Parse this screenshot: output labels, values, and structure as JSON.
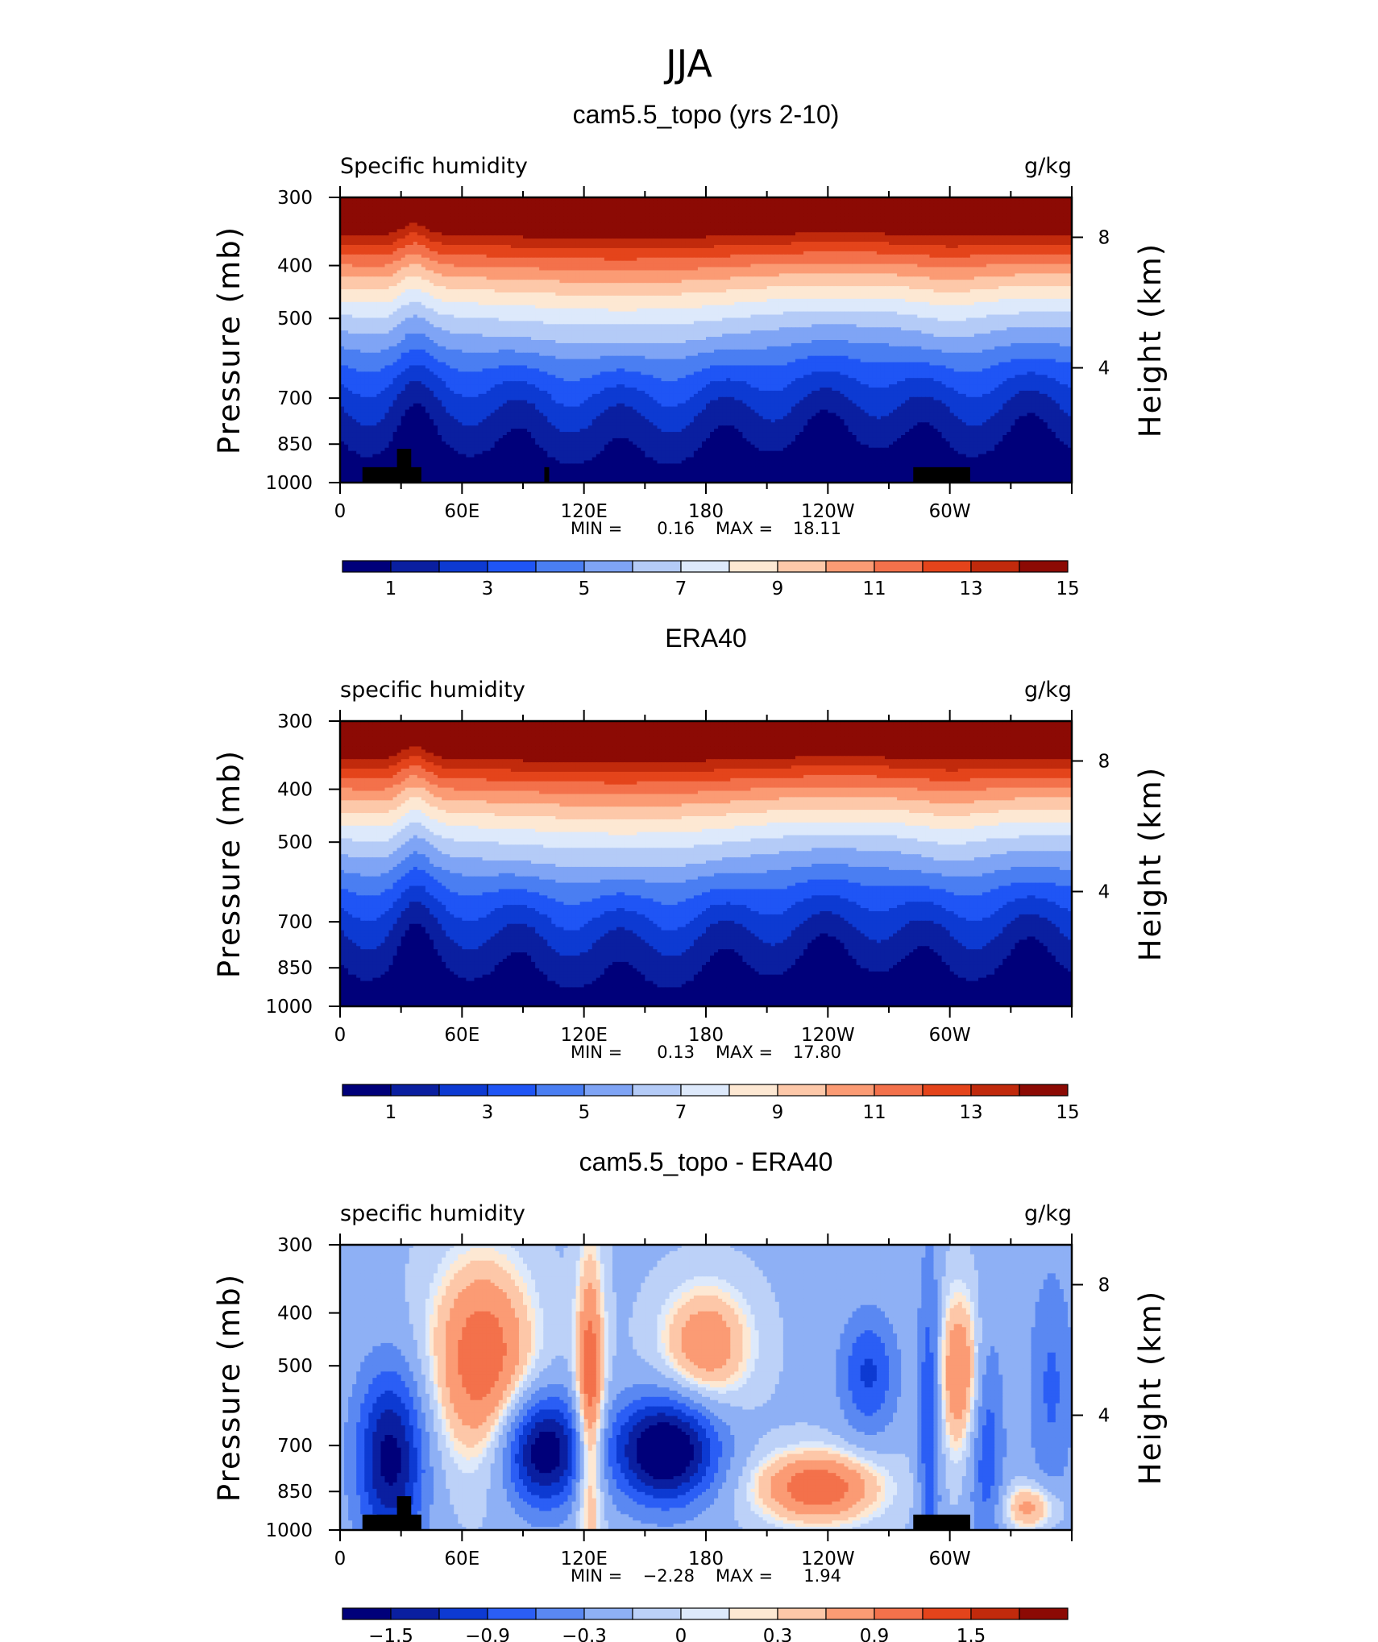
{
  "figure_title": "JJA",
  "colors": {
    "seq": [
      "#00007a",
      "#0a1fa0",
      "#0d3ad2",
      "#1f55f5",
      "#4a7ef2",
      "#7fa4f5",
      "#b4cbf7",
      "#dde9fb",
      "#fde8d3",
      "#fdc8a9",
      "#fb9b74",
      "#f3714b",
      "#e4441b",
      "#c12a0c",
      "#8c0a04"
    ],
    "div": [
      "#00007a",
      "#0a1fa0",
      "#0d3ad2",
      "#2b5ef5",
      "#5a88f2",
      "#8eb0f5",
      "#bcd1f8",
      "#dde9fb",
      "#fde8d3",
      "#fdc7a8",
      "#fb9b74",
      "#f3714b",
      "#e4441b",
      "#c12a0c",
      "#8c0a04"
    ]
  },
  "panels": [
    {
      "title": "cam5.5_topo (yrs 2-10)",
      "left_label": "Specific humidity",
      "right_label": "g/kg",
      "min_label": "MIN =",
      "min_value": "0.16",
      "max_label": "MAX =",
      "max_value": "18.11",
      "colorbar_ticks": [
        "1",
        "3",
        "5",
        "7",
        "9",
        "11",
        "13",
        "15"
      ],
      "topography": true
    },
    {
      "title": "ERA40",
      "left_label": "specific humidity",
      "right_label": "g/kg",
      "min_label": "MIN =",
      "min_value": "0.13",
      "max_label": "MAX =",
      "max_value": "17.80",
      "colorbar_ticks": [
        "1",
        "3",
        "5",
        "7",
        "9",
        "11",
        "13",
        "15"
      ],
      "topography": false
    },
    {
      "title": "cam5.5_topo - ERA40",
      "left_label": "specific humidity",
      "right_label": "g/kg",
      "min_label": "MIN =",
      "min_value": "−2.28",
      "max_label": "MAX =",
      "max_value": "1.94",
      "colorbar_ticks": [
        "−1.5",
        "−0.9",
        "−0.3",
        "0",
        "0.3",
        "0.9",
        "1.5"
      ],
      "topography": true
    }
  ],
  "chart_data": [
    {
      "type": "heatmap",
      "title": "cam5.5_topo (yrs 2-10)",
      "variable": "Specific humidity",
      "units": "g/kg",
      "xlabel": "",
      "ylabel": "Pressure (mb)",
      "y2label": "Height (km)",
      "x_ticks": [
        "0",
        "60E",
        "120E",
        "180",
        "120W",
        "60W"
      ],
      "y_ticks": [
        "300",
        "400",
        "500",
        "700",
        "850",
        "1000"
      ],
      "y2_ticks": [
        "8",
        "4"
      ],
      "levels": [
        1,
        2,
        3,
        4,
        5,
        6,
        7,
        8,
        9,
        10,
        11,
        12,
        13,
        14,
        15
      ],
      "min": 0.16,
      "max": 18.11
    },
    {
      "type": "heatmap",
      "title": "ERA40",
      "variable": "specific humidity",
      "units": "g/kg",
      "xlabel": "",
      "ylabel": "Pressure (mb)",
      "y2label": "Height (km)",
      "x_ticks": [
        "0",
        "60E",
        "120E",
        "180",
        "120W",
        "60W"
      ],
      "y_ticks": [
        "300",
        "400",
        "500",
        "700",
        "850",
        "1000"
      ],
      "y2_ticks": [
        "8",
        "4"
      ],
      "levels": [
        1,
        2,
        3,
        4,
        5,
        6,
        7,
        8,
        9,
        10,
        11,
        12,
        13,
        14,
        15
      ],
      "min": 0.13,
      "max": 17.8
    },
    {
      "type": "heatmap",
      "title": "cam5.5_topo - ERA40",
      "variable": "specific humidity",
      "units": "g/kg",
      "xlabel": "",
      "ylabel": "Pressure (mb)",
      "y2label": "Height (km)",
      "x_ticks": [
        "0",
        "60E",
        "120E",
        "180",
        "120W",
        "60W"
      ],
      "y_ticks": [
        "300",
        "400",
        "500",
        "700",
        "850",
        "1000"
      ],
      "y2_ticks": [
        "8",
        "4"
      ],
      "levels": [
        -1.8,
        -1.5,
        -1.2,
        -0.9,
        -0.6,
        -0.3,
        -0.1,
        0,
        0.1,
        0.3,
        0.6,
        0.9,
        1.2,
        1.5,
        1.8
      ],
      "min": -2.28,
      "max": 1.94
    }
  ]
}
